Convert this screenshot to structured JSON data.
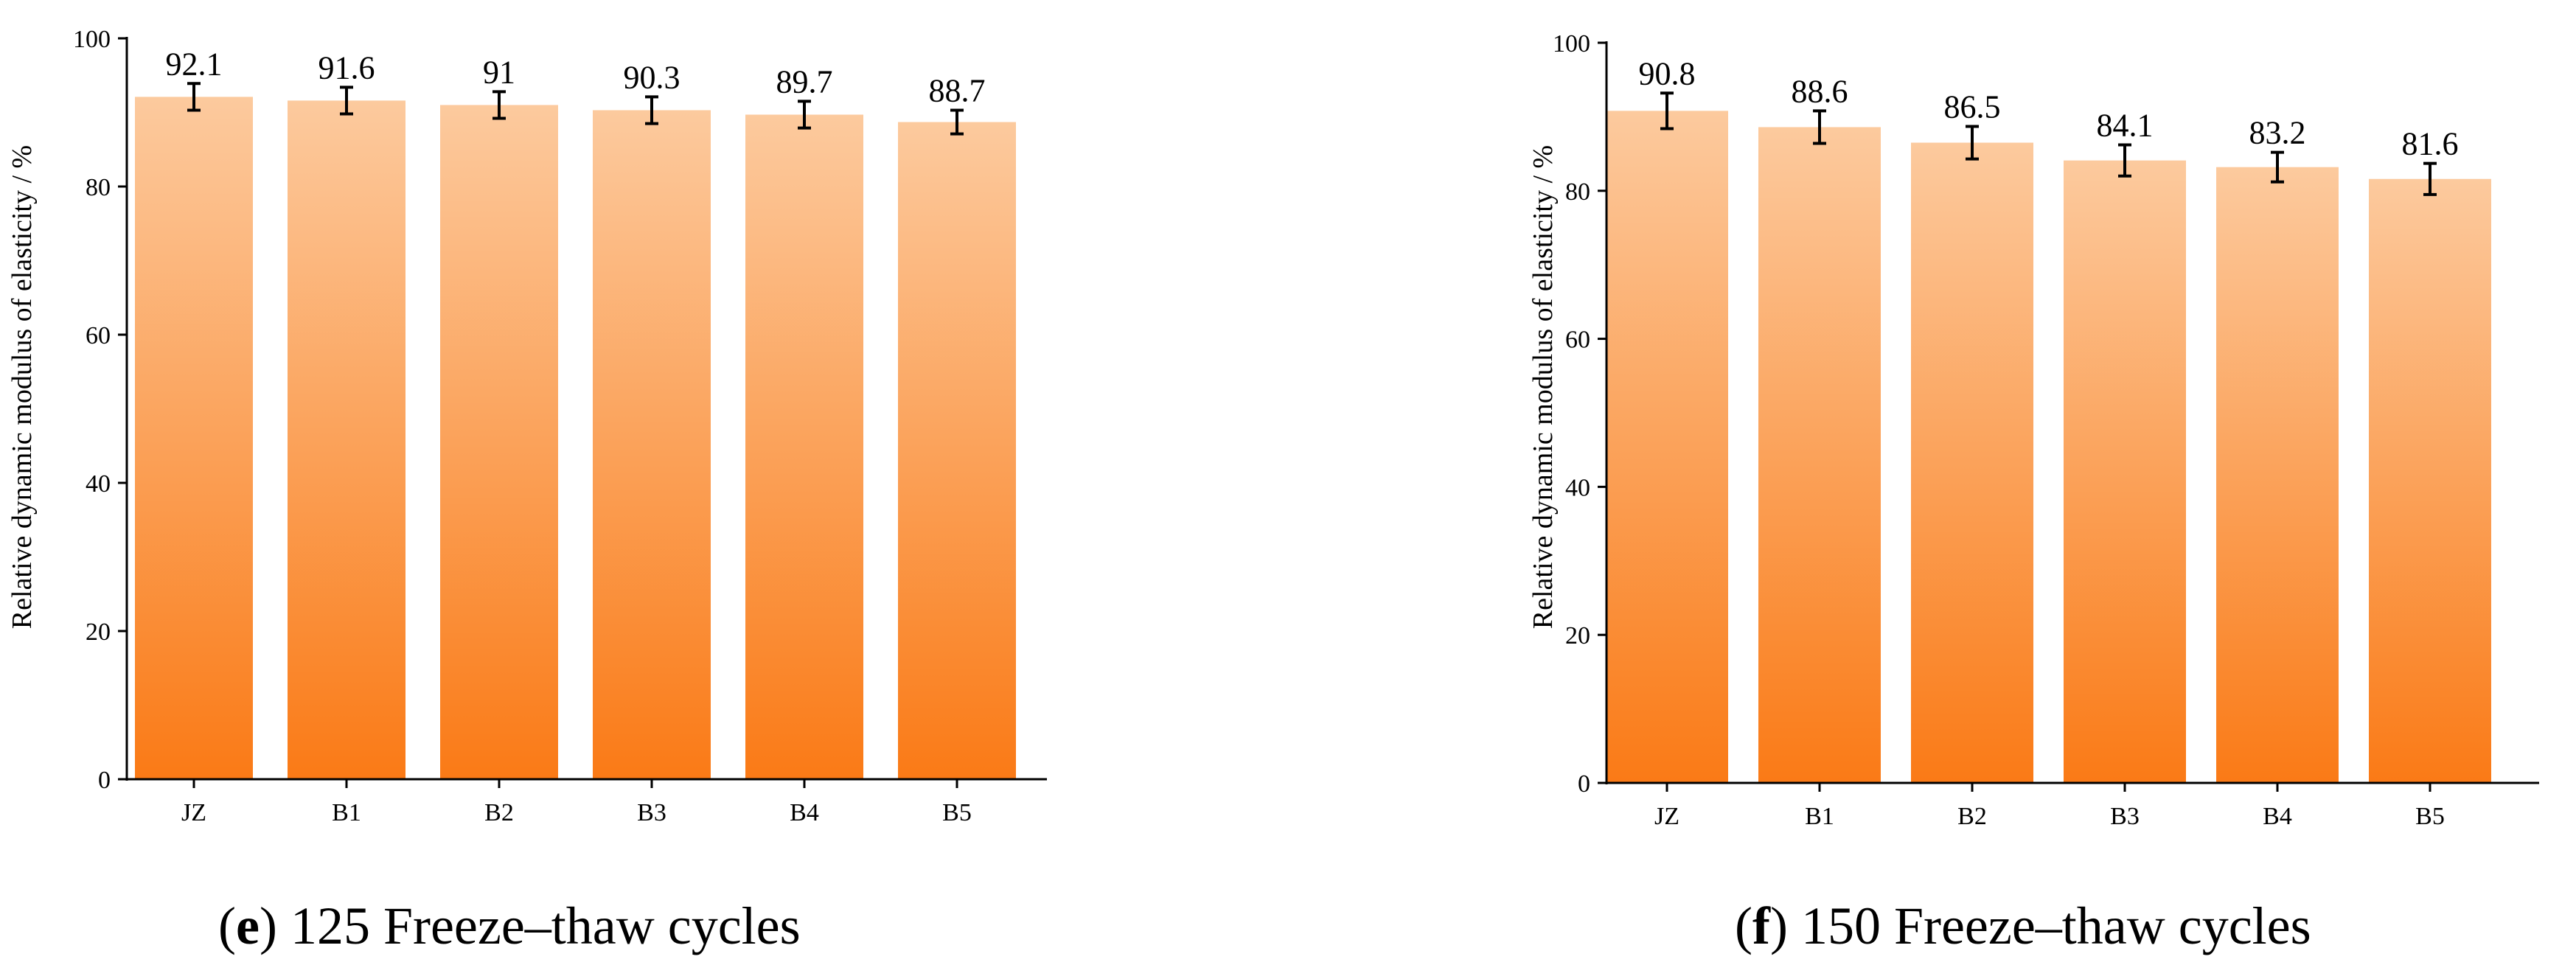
{
  "chart_data": [
    {
      "type": "bar",
      "panel_letter": "e",
      "caption": "125 Freeze–thaw cycles",
      "ylabel": "Relative dynamic modulus of elasticity / %",
      "xlabel": "",
      "categories": [
        "JZ",
        "B1",
        "B2",
        "B3",
        "B4",
        "B5"
      ],
      "values": [
        92.1,
        91.6,
        91,
        90.3,
        89.7,
        88.7
      ],
      "value_labels": [
        "92.1",
        "91.6",
        "91",
        "90.3",
        "89.7",
        "88.7"
      ],
      "error": [
        1.8,
        1.8,
        1.8,
        1.8,
        1.8,
        1.6
      ],
      "ylim": [
        0,
        100
      ],
      "yticks": [
        0,
        20,
        40,
        60,
        80,
        100
      ],
      "grid": false,
      "bar_color_top": "#FCCA9E",
      "bar_color_bottom": "#FA7A16"
    },
    {
      "type": "bar",
      "panel_letter": "f",
      "caption": "150 Freeze–thaw cycles",
      "ylabel": "Relative dynamic modulus of elasticity / %",
      "xlabel": "",
      "categories": [
        "JZ",
        "B1",
        "B2",
        "B3",
        "B4",
        "B5"
      ],
      "values": [
        90.8,
        88.6,
        86.5,
        84.1,
        83.2,
        81.6
      ],
      "value_labels": [
        "90.8",
        "88.6",
        "86.5",
        "84.1",
        "83.2",
        "81.6"
      ],
      "error": [
        2.4,
        2.2,
        2.2,
        2.1,
        2.0,
        2.1
      ],
      "ylim": [
        0,
        100
      ],
      "yticks": [
        0,
        20,
        40,
        60,
        80,
        100
      ],
      "grid": false,
      "bar_color_top": "#FCCA9E",
      "bar_color_bottom": "#FA7A16"
    }
  ]
}
